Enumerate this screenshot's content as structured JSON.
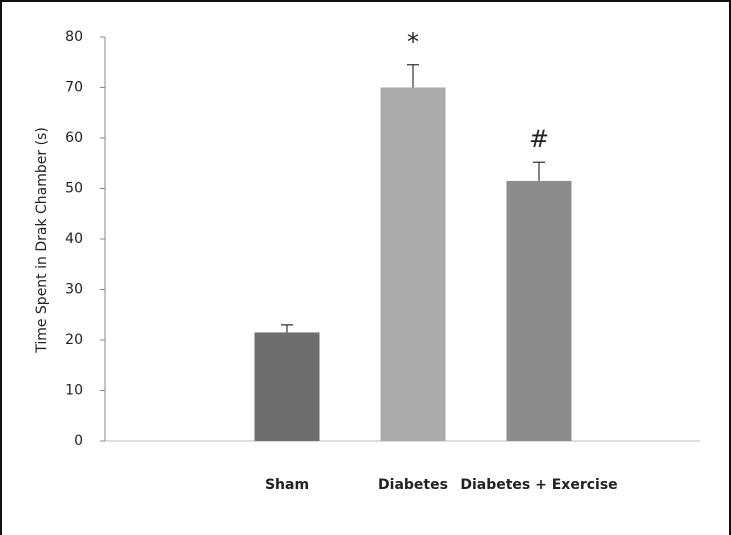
{
  "chart_data": {
    "type": "bar",
    "y_label": "Time Spent in Drak Chamber (s)",
    "categories": [
      "Sham",
      "Diabetes",
      "Diabetes + Exercise"
    ],
    "values": [
      21.5,
      70,
      51.5
    ],
    "errors": [
      1.5,
      4.5,
      3.7
    ],
    "colors": [
      "#6e6e6e",
      "#ababab",
      "#8c8c8c"
    ],
    "annotations": [
      null,
      "*",
      "#"
    ],
    "ylim": [
      0,
      80
    ],
    "yticks": [
      0,
      10,
      20,
      30,
      40,
      50,
      60,
      70,
      80
    ],
    "grid": false
  }
}
